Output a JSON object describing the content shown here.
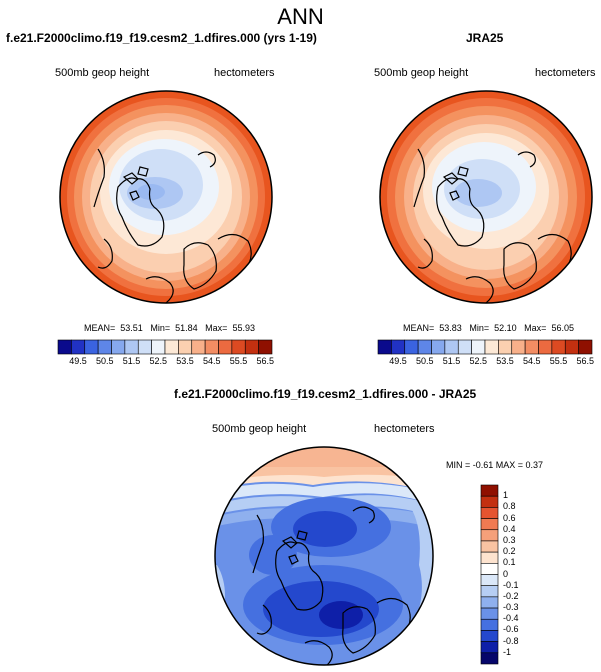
{
  "figure_title": "ANN",
  "panel_left": {
    "title": "f.e21.F2000climo.f19_f19.cesm2_1.dfires.000 (yrs 1-19)",
    "variable": "500mb geop height",
    "units": "hectometers",
    "stats": {
      "mean_label": "MEAN=",
      "mean": "53.51",
      "min_label": "Min=",
      "min": "51.84",
      "max_label": "Max=",
      "max": "55.93"
    }
  },
  "panel_right": {
    "title": "JRA25",
    "variable": "500mb geop height",
    "units": "hectometers",
    "stats": {
      "mean_label": "MEAN=",
      "mean": "53.83",
      "min_label": "Min=",
      "min": "52.10",
      "max_label": "Max=",
      "max": "56.05"
    }
  },
  "panel_diff": {
    "title": "f.e21.F2000climo.f19_f19.cesm2_1.dfires.000 - JRA25",
    "variable": "500mb geop height",
    "units": "hectometers",
    "stats_text": "MIN = -0.61 MAX = 0.37"
  },
  "colorbar_main": {
    "ticks": [
      "49.5",
      "50.5",
      "51.5",
      "52.5",
      "53.5",
      "54.5",
      "55.5",
      "56.5"
    ],
    "colors": [
      "#0a0a8c",
      "#2132c4",
      "#3a63e0",
      "#5e86e8",
      "#86a8ee",
      "#aec7f3",
      "#cfdff7",
      "#eef4fb",
      "#fde9d6",
      "#fbd0b0",
      "#f8b08a",
      "#f38d63",
      "#ec6a40",
      "#dc4a22",
      "#c33010",
      "#8f1000"
    ]
  },
  "colorbar_diff": {
    "ticks": [
      "1",
      "0.8",
      "0.6",
      "0.4",
      "0.3",
      "0.2",
      "0.1",
      "0",
      "-0.1",
      "-0.2",
      "-0.3",
      "-0.4",
      "-0.6",
      "-0.8",
      "-1"
    ],
    "colors": [
      "#8f1000",
      "#c33010",
      "#e55430",
      "#f07a52",
      "#f5a07a",
      "#f9c3a2",
      "#fde3cf",
      "#ffffff",
      "#dbe8f9",
      "#b6cef4",
      "#8fb0ee",
      "#6a91e8",
      "#4570e0",
      "#2448cd",
      "#0e1fa8",
      "#06066a"
    ]
  },
  "chart_data": [
    {
      "type": "contour-map",
      "title": "f.e21.F2000climo.f19_f19.cesm2_1.dfires.000 (yrs 1-19)",
      "variable": "500mb geop height",
      "units": "hectometers",
      "projection": "north polar stereographic",
      "mean": 53.51,
      "min": 51.84,
      "max": 55.93,
      "contour_levels": [
        49.5,
        50.0,
        50.5,
        51.0,
        51.5,
        52.0,
        52.5,
        53.0,
        53.5,
        54.0,
        54.5,
        55.0,
        55.5,
        56.0,
        56.5
      ]
    },
    {
      "type": "contour-map",
      "title": "JRA25",
      "variable": "500mb geop height",
      "units": "hectometers",
      "projection": "north polar stereographic",
      "mean": 53.83,
      "min": 52.1,
      "max": 56.05,
      "contour_levels": [
        49.5,
        50.0,
        50.5,
        51.0,
        51.5,
        52.0,
        52.5,
        53.0,
        53.5,
        54.0,
        54.5,
        55.0,
        55.5,
        56.0,
        56.5
      ]
    },
    {
      "type": "contour-map",
      "title": "f.e21.F2000climo.f19_f19.cesm2_1.dfires.000 - JRA25",
      "variable": "500mb geop height",
      "units": "hectometers",
      "projection": "north polar stereographic",
      "min": -0.61,
      "max": 0.37,
      "contour_levels": [
        -1,
        -0.8,
        -0.6,
        -0.4,
        -0.3,
        -0.2,
        -0.1,
        0,
        0.1,
        0.2,
        0.3,
        0.4,
        0.6,
        0.8,
        1
      ]
    }
  ]
}
